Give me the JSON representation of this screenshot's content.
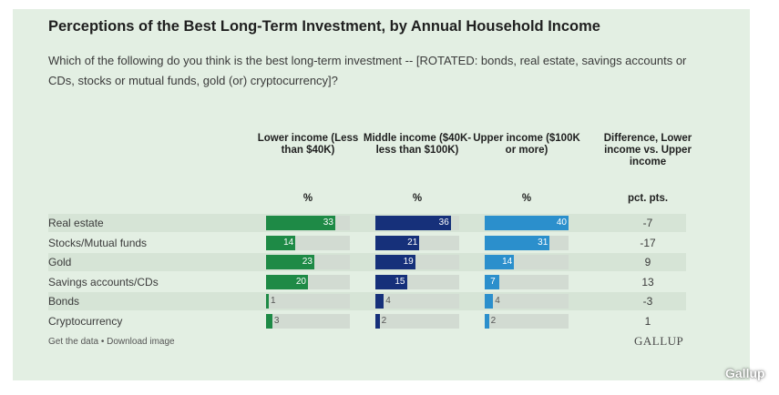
{
  "chart_data": {
    "type": "bar",
    "title": "Perceptions of the Best Long-Term Investment, by Annual Household Income",
    "subtitle": "Which of the following do you think is the best long-term investment -- [ROTATED: bonds, real estate, savings accounts or CDs, stocks or mutual funds, gold (or) cryptocurrency]?",
    "categories": [
      "Real estate",
      "Stocks/Mutual funds",
      "Gold",
      "Savings accounts/CDs",
      "Bonds",
      "Cryptocurrency"
    ],
    "series": [
      {
        "name": "Lower income (Less than $40K)",
        "unit": "%",
        "color": "#1e8a46",
        "values": [
          33,
          14,
          23,
          20,
          1,
          3
        ]
      },
      {
        "name": "Middle income ($40K-less than $100K)",
        "unit": "%",
        "color": "#16307a",
        "values": [
          36,
          21,
          19,
          15,
          4,
          2
        ]
      },
      {
        "name": "Upper income ($100K or more)",
        "unit": "%",
        "color": "#2b8fcc",
        "values": [
          40,
          31,
          14,
          7,
          4,
          2
        ]
      }
    ],
    "difference": {
      "name": "Difference, Lower income vs. Upper income",
      "unit": "pct. pts.",
      "values": [
        "-7",
        "-17",
        "9",
        "13",
        "-3",
        "1"
      ]
    },
    "xlim": [
      0,
      40
    ],
    "track_color": "#d2dbd2",
    "row_stripe_color": "#d6e4d6"
  },
  "footer": {
    "links": "Get the data • Download image",
    "brand": "GALLUP",
    "watermark": "Gallup"
  }
}
